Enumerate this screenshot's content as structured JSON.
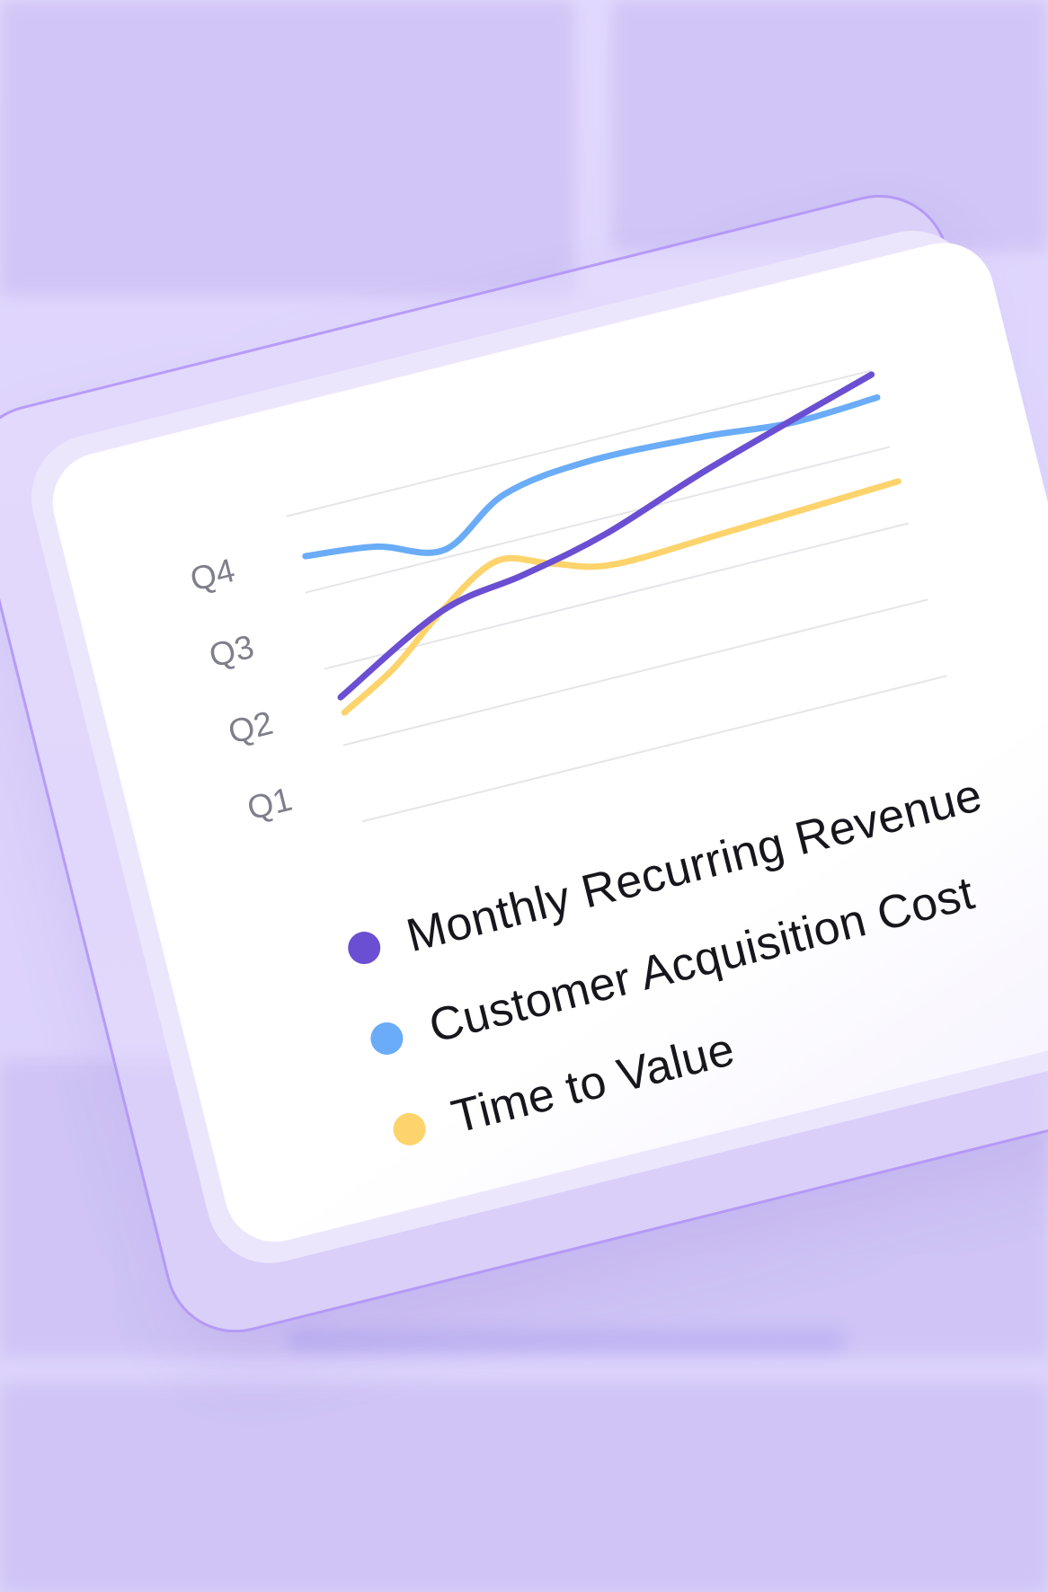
{
  "chart_data": {
    "type": "line",
    "title": "",
    "xlabel": "",
    "ylabel": "",
    "y_ticks": [
      "Q1",
      "Q2",
      "Q3",
      "Q4"
    ],
    "ylim": [
      0.5,
      4.5
    ],
    "xlim": [
      0,
      10
    ],
    "grid": true,
    "legend_position": "bottom",
    "series": [
      {
        "name": "Monthly Recurring Revenue",
        "color": "#6b4fd3",
        "x": [
          0,
          2,
          3.5,
          5,
          7,
          10
        ],
        "y": [
          2.1,
          2.85,
          3.05,
          3.3,
          3.8,
          4.45
        ]
      },
      {
        "name": "Customer Acquisition Cost",
        "color": "#6aacf7",
        "x": [
          0,
          1.2,
          2.3,
          3.5,
          5,
          7,
          8.5,
          10
        ],
        "y": [
          3.95,
          3.85,
          3.6,
          4.1,
          4.25,
          4.2,
          4.1,
          4.15
        ]
      },
      {
        "name": "Time to Value",
        "color": "#fdd36c",
        "x": [
          0,
          1,
          2,
          3.1,
          4,
          5,
          7,
          10
        ],
        "y": [
          1.9,
          2.3,
          2.85,
          3.3,
          3.1,
          2.9,
          2.95,
          3.05
        ]
      }
    ]
  },
  "colors": {
    "background": "#ded5fc",
    "grid": "#e5e5ea",
    "tick_text": "#7f7f8c",
    "legend_text": "#16161c"
  }
}
